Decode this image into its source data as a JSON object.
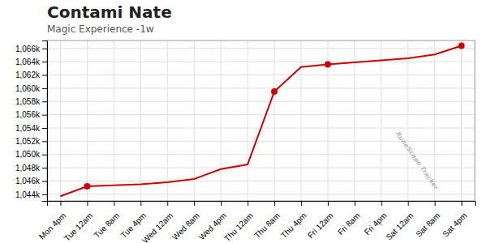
{
  "chart_data": {
    "type": "line",
    "title": "Contami Nate",
    "subtitle": "Magic Experience -1w",
    "annotation": "RuneScape Tracker",
    "categories": [
      "Mon 4pm",
      "Tue 12am",
      "Tue 8am",
      "Tue 4pm",
      "Wed 12am",
      "Wed 8am",
      "Wed 4pm",
      "Thu 12am",
      "Thu 8am",
      "Thu 4pm",
      "Fri 12am",
      "Fri 8am",
      "Fri 4pm",
      "Sat 12am",
      "Sat 8am",
      "Sat 4pm"
    ],
    "series": [
      {
        "type": "line",
        "color": "#cc0000",
        "values": [
          1043700,
          1045200,
          1045350,
          1045500,
          1045800,
          1046300,
          1047800,
          1048500,
          1059500,
          1063200,
          1063600,
          1063900,
          1064200,
          1064500,
          1065100,
          1066400
        ]
      },
      {
        "type": "scatter",
        "marker": "circle",
        "color": "#cc0000",
        "values": [
          null,
          1045200,
          null,
          null,
          null,
          null,
          null,
          null,
          1059500,
          null,
          1063600,
          null,
          null,
          null,
          null,
          1066400
        ]
      }
    ],
    "ylim": [
      1043000,
      1067200
    ],
    "yticks": [
      {
        "value": 1044000,
        "label": "1,044k"
      },
      {
        "value": 1046000,
        "label": "1,046k"
      },
      {
        "value": 1048000,
        "label": "1,048k"
      },
      {
        "value": 1050000,
        "label": "1,050k"
      },
      {
        "value": 1052000,
        "label": "1,052k"
      },
      {
        "value": 1054000,
        "label": "1,054k"
      },
      {
        "value": 1056000,
        "label": "1,056k"
      },
      {
        "value": 1058000,
        "label": "1,058k"
      },
      {
        "value": 1060000,
        "label": "1,060k"
      },
      {
        "value": 1062000,
        "label": "1,062k"
      },
      {
        "value": 1064000,
        "label": "1,064k"
      },
      {
        "value": 1066000,
        "label": "1,066k"
      }
    ],
    "grid": true
  }
}
